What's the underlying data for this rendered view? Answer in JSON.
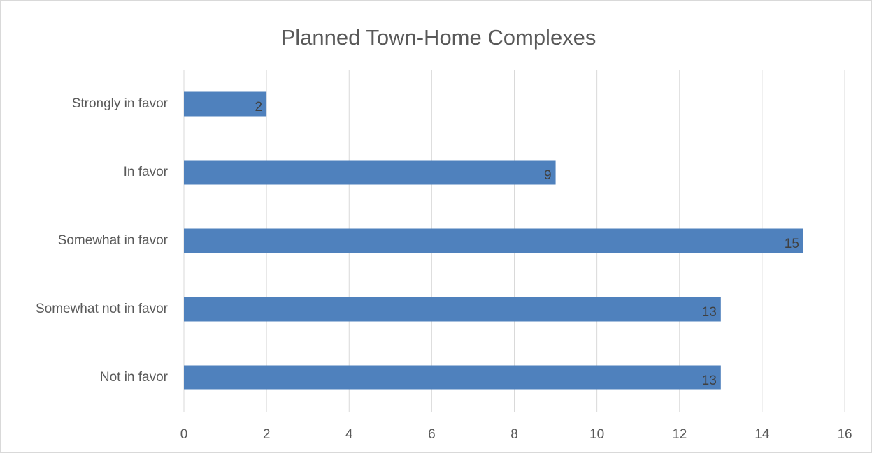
{
  "chart_data": {
    "type": "bar",
    "orientation": "horizontal",
    "title": "Planned Town-Home Complexes",
    "categories": [
      "Strongly in favor",
      "In favor",
      "Somewhat in favor",
      "Somewhat not in favor",
      "Not in favor"
    ],
    "values": [
      2,
      9,
      15,
      13,
      13
    ],
    "color": "#4f81bd",
    "xlim": [
      0,
      16
    ],
    "xticks": [
      0,
      2,
      4,
      6,
      8,
      10,
      12,
      14,
      16
    ],
    "grid": true,
    "data_labels": true
  }
}
